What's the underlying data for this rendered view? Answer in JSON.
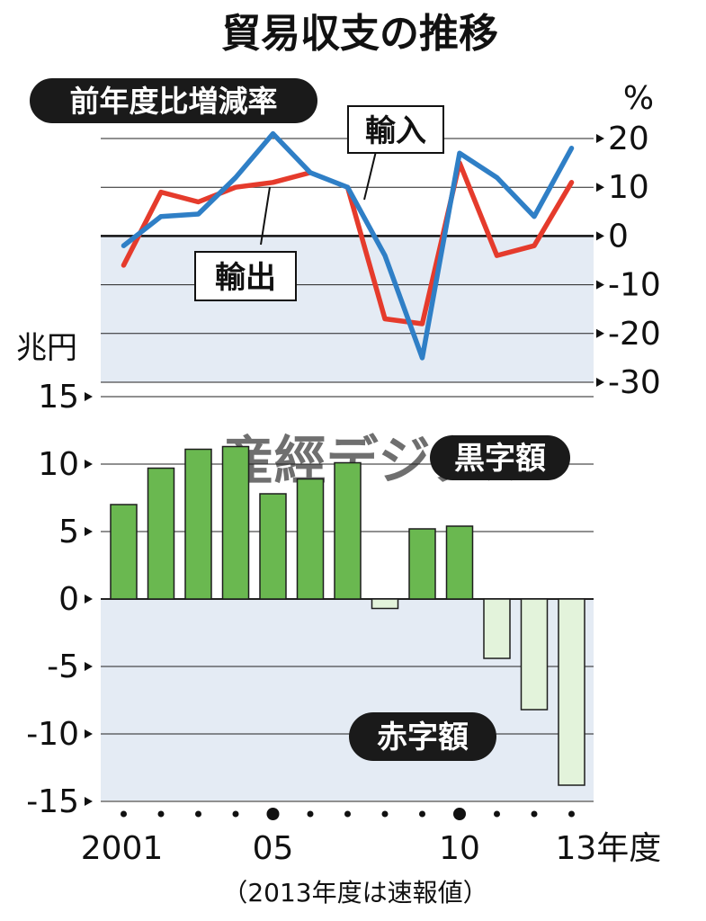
{
  "title": "貿易収支の推移",
  "chart_data": [
    {
      "type": "line",
      "label": "前年度比増減率",
      "unit": "%",
      "ylim": [
        -30,
        20
      ],
      "y_ticks": [
        "20",
        "10",
        "0",
        "-10",
        "-20",
        "-30"
      ],
      "x": [
        2001,
        2002,
        2003,
        2004,
        2005,
        2006,
        2007,
        2008,
        2009,
        2010,
        2011,
        2012,
        2013
      ],
      "series": [
        {
          "name": "輸入",
          "color": "#2f7fc6",
          "values": [
            -2,
            4,
            4.5,
            12,
            21,
            13,
            10,
            -4,
            -25,
            17,
            12,
            4,
            18
          ]
        },
        {
          "name": "輸出",
          "color": "#e53b2c",
          "values": [
            -6,
            9,
            7,
            10,
            11,
            13,
            null,
            null,
            null,
            null,
            null,
            null,
            null
          ]
        },
        {
          "name": "輸出",
          "color": "#e53b2c",
          "values": [
            null,
            null,
            null,
            null,
            null,
            null,
            10,
            -17,
            -18,
            15,
            -4,
            -2,
            11
          ]
        }
      ],
      "grid": true
    },
    {
      "type": "bar",
      "unit_label": "兆円",
      "ylim": [
        -15,
        15
      ],
      "y_ticks": [
        "15",
        "10",
        "5",
        "0",
        "-5",
        "-10",
        "-15"
      ],
      "x": [
        2001,
        2002,
        2003,
        2004,
        2005,
        2006,
        2007,
        2008,
        2009,
        2010,
        2011,
        2012,
        2013
      ],
      "values": [
        7,
        9.7,
        11.1,
        11.3,
        7.8,
        8.9,
        10.1,
        -0.7,
        5.2,
        5.4,
        -4.4,
        -8.2,
        -13.8
      ],
      "positive_label": "黒字額",
      "negative_label": "赤字額",
      "positive_color": "#6ab850",
      "negative_color": "#e3f3db",
      "grid": true
    }
  ],
  "x_axis": {
    "tick_labels": [
      {
        "year": 2001,
        "label": "2001"
      },
      {
        "year": 2005,
        "label": "05"
      },
      {
        "year": 2010,
        "label": "10"
      },
      {
        "year": 2013,
        "label": "13年度"
      }
    ]
  },
  "footnote": "（2013年度は速報値）",
  "watermark": "産經デジタル"
}
